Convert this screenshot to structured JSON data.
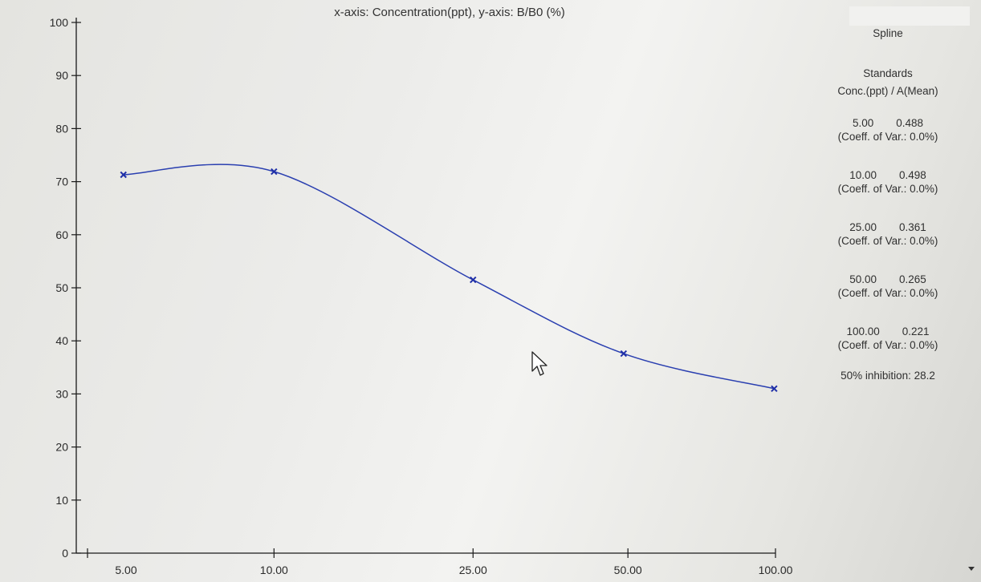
{
  "chart_data": {
    "type": "line",
    "title": "x-axis: Concentration(ppt), y-axis: B/B0 (%)",
    "xlabel": "Concentration(ppt)",
    "ylabel": "B/B0 (%)",
    "x_tick_labels": [
      "5.00",
      "10.00",
      "25.00",
      "50.00",
      "100.00"
    ],
    "y_ticks": [
      0,
      10,
      20,
      30,
      40,
      50,
      60,
      70,
      80,
      90,
      100
    ],
    "ylim": [
      0,
      100
    ],
    "curve": "spline",
    "series": [
      {
        "x": [
          5.0,
          10.0,
          25.0,
          50.0,
          100.0
        ],
        "y": [
          71.3,
          71.9,
          51.5,
          37.6,
          31.0
        ]
      }
    ]
  },
  "side_panel": {
    "method": "Spline",
    "standards_header": "Standards",
    "columns_header": "Conc.(ppt) / A(Mean)",
    "standards": [
      {
        "conc": "5.00",
        "mean": "0.488",
        "cv": "(Coeff. of Var.: 0.0%)"
      },
      {
        "conc": "10.00",
        "mean": "0.498",
        "cv": "(Coeff. of Var.: 0.0%)"
      },
      {
        "conc": "25.00",
        "mean": "0.361",
        "cv": "(Coeff. of Var.: 0.0%)"
      },
      {
        "conc": "50.00",
        "mean": "0.265",
        "cv": "(Coeff. of Var.: 0.0%)"
      },
      {
        "conc": "100.00",
        "mean": "0.221",
        "cv": "(Coeff. of Var.: 0.0%)"
      }
    ],
    "inhibition": "50% inhibition: 28.2"
  },
  "icons": {
    "cursor": "mouse-pointer-icon",
    "scroll": "scroll-down-arrow-icon"
  },
  "colors": {
    "curve": "#2a3fb0",
    "axis": "#1a1a1a"
  }
}
